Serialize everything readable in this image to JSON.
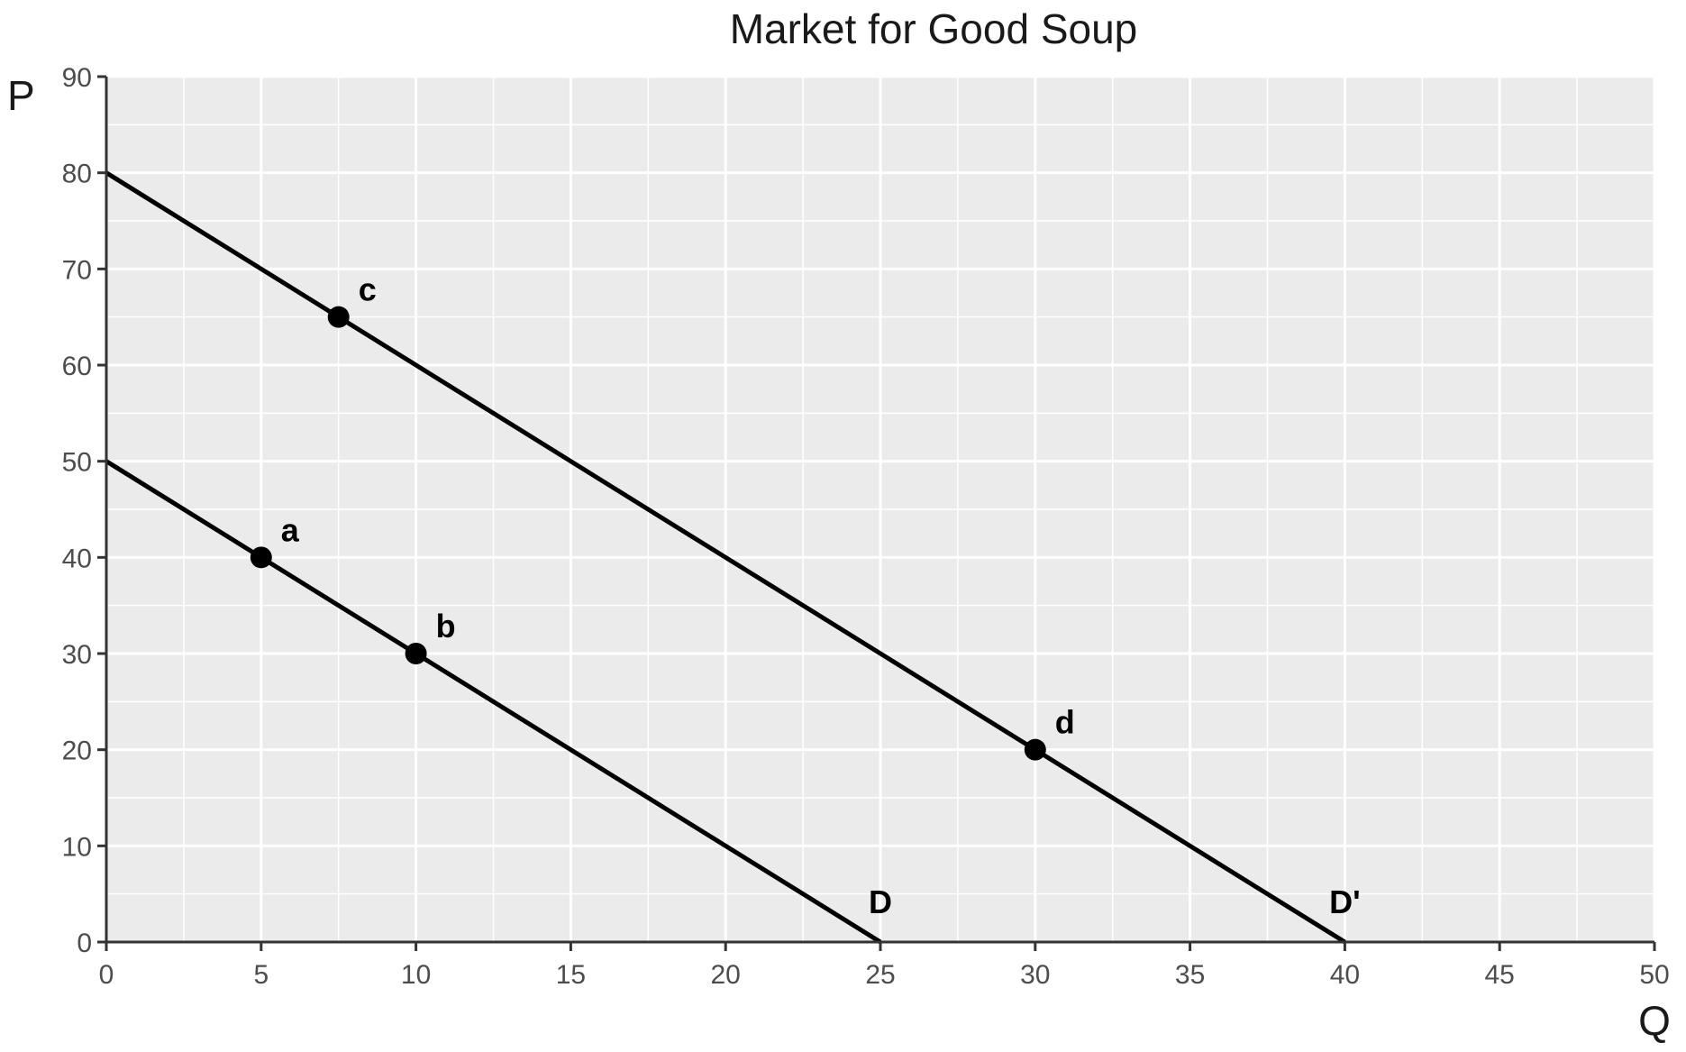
{
  "chart_data": {
    "type": "line",
    "title": "Market for Good Soup",
    "xlabel": "Q",
    "ylabel": "P",
    "xlim": [
      0,
      50
    ],
    "ylim": [
      0,
      90
    ],
    "x_ticks": [
      0,
      5,
      10,
      15,
      20,
      25,
      30,
      35,
      40,
      45,
      50
    ],
    "y_ticks": [
      0,
      10,
      20,
      30,
      40,
      50,
      60,
      70,
      80,
      90
    ],
    "grid": true,
    "series": [
      {
        "label": "D",
        "x": [
          0,
          25
        ],
        "y": [
          50,
          0
        ]
      },
      {
        "label": "D'",
        "x": [
          0,
          40
        ],
        "y": [
          80,
          0
        ]
      }
    ],
    "points": [
      {
        "label": "a",
        "x": 5,
        "y": 40
      },
      {
        "label": "b",
        "x": 10,
        "y": 30
      },
      {
        "label": "c",
        "x": 7.5,
        "y": 65
      },
      {
        "label": "d",
        "x": 30,
        "y": 20
      }
    ],
    "colors": {
      "panel": "#ebebeb",
      "grid": "#ffffff",
      "line": "#000000",
      "axis": "#333333"
    }
  }
}
